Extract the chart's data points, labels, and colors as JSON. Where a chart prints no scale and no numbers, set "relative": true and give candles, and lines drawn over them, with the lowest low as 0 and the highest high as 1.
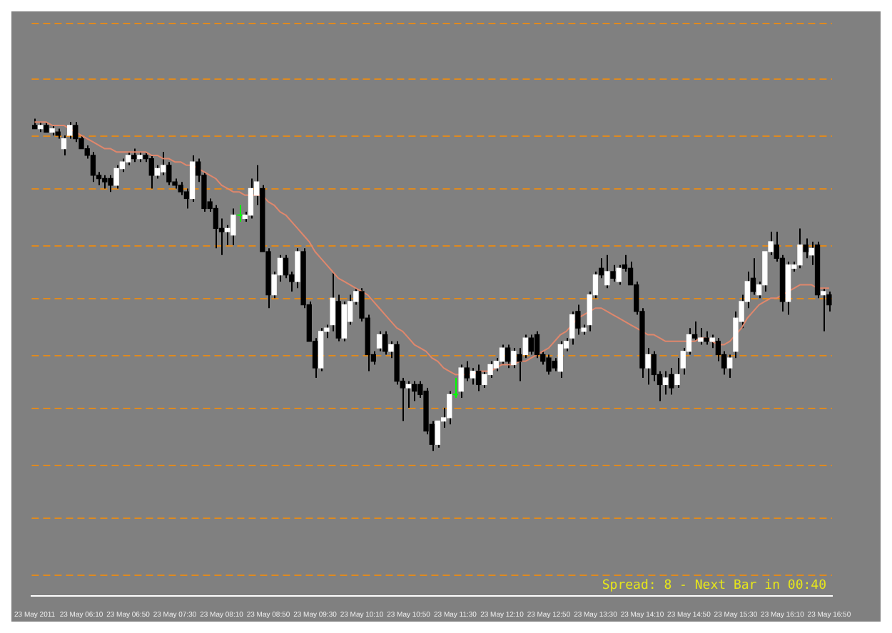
{
  "chart_data": {
    "type": "candlestick",
    "relative": true,
    "legend": false,
    "categories": [
      "23 May 2011",
      null,
      null,
      null,
      null,
      null,
      null,
      null,
      "23 May 06:10",
      null,
      null,
      null,
      null,
      null,
      null,
      null,
      "23 May 06:50",
      null,
      null,
      null,
      null,
      null,
      null,
      null,
      "23 May 07:30",
      null,
      null,
      null,
      null,
      null,
      null,
      null,
      "23 May 08:10",
      null,
      null,
      null,
      null,
      null,
      null,
      null,
      "23 May 08:50",
      null,
      null,
      null,
      null,
      null,
      null,
      null,
      "23 May 09:30",
      null,
      null,
      null,
      null,
      null,
      null,
      null,
      "23 May 10:10",
      null,
      null,
      null,
      null,
      null,
      null,
      null,
      "23 May 10:50",
      null,
      null,
      null,
      null,
      null,
      null,
      null,
      "23 May 11:30",
      null,
      null,
      null,
      null,
      null,
      null,
      null,
      "23 May 12:10",
      null,
      null,
      null,
      null,
      null,
      null,
      null,
      "23 May 12:50",
      null,
      null,
      null,
      null,
      null,
      null,
      null,
      "23 May 13:30",
      null,
      null,
      null,
      null,
      null,
      null,
      null,
      "23 May 14:10",
      null,
      null,
      null,
      null,
      null,
      null,
      null,
      "23 May 14:50",
      null,
      null,
      null,
      null,
      null,
      null,
      null,
      "23 May 15:30",
      null,
      null,
      null,
      null,
      null,
      null,
      null,
      "23 May 16:10",
      null,
      null,
      null,
      null,
      null,
      null,
      null,
      "23 May 16:50"
    ],
    "ohlc": [
      [
        0.98,
        1.0,
        0.97,
        0.97
      ],
      [
        0.97,
        0.99,
        0.96,
        0.98
      ],
      [
        0.98,
        0.99,
        0.96,
        0.96
      ],
      [
        0.96,
        0.98,
        0.95,
        0.97
      ],
      [
        0.96,
        0.97,
        0.94,
        0.95
      ],
      [
        0.91,
        0.95,
        0.89,
        0.94
      ],
      [
        0.95,
        0.99,
        0.94,
        0.98
      ],
      [
        0.98,
        0.99,
        0.93,
        0.94
      ],
      [
        0.94,
        0.95,
        0.91,
        0.91
      ],
      [
        0.91,
        0.92,
        0.88,
        0.89
      ],
      [
        0.89,
        0.9,
        0.81,
        0.83
      ],
      [
        0.83,
        0.84,
        0.8,
        0.82
      ],
      [
        0.82,
        0.83,
        0.79,
        0.81
      ],
      [
        0.82,
        0.83,
        0.78,
        0.8
      ],
      [
        0.8,
        0.86,
        0.79,
        0.85
      ],
      [
        0.85,
        0.88,
        0.84,
        0.87
      ],
      [
        0.87,
        0.9,
        0.86,
        0.89
      ],
      [
        0.89,
        0.91,
        0.87,
        0.88
      ],
      [
        0.88,
        0.9,
        0.87,
        0.89
      ],
      [
        0.89,
        0.9,
        0.87,
        0.88
      ],
      [
        0.88,
        0.89,
        0.79,
        0.83
      ],
      [
        0.83,
        0.86,
        0.82,
        0.85
      ],
      [
        0.84,
        0.9,
        0.83,
        0.86
      ],
      [
        0.86,
        0.87,
        0.8,
        0.81
      ],
      [
        0.81,
        0.82,
        0.79,
        0.8
      ],
      [
        0.8,
        0.81,
        0.77,
        0.78
      ],
      [
        0.78,
        0.79,
        0.73,
        0.76
      ],
      [
        0.76,
        0.89,
        0.75,
        0.87
      ],
      [
        0.87,
        0.88,
        0.81,
        0.83
      ],
      [
        0.83,
        0.84,
        0.72,
        0.73
      ],
      [
        0.75,
        0.76,
        0.72,
        0.73
      ],
      [
        0.73,
        0.74,
        0.61,
        0.67
      ],
      [
        0.67,
        0.7,
        0.59,
        0.66
      ],
      [
        0.66,
        0.68,
        0.62,
        0.67
      ],
      [
        0.65,
        0.73,
        0.62,
        0.71
      ],
      [
        0.71,
        0.74,
        0.69,
        0.71
      ],
      [
        0.7,
        0.72,
        0.69,
        0.71
      ],
      [
        0.71,
        0.82,
        0.7,
        0.79
      ],
      [
        0.77,
        0.86,
        0.74,
        0.81
      ],
      [
        0.79,
        0.8,
        0.6,
        0.6
      ],
      [
        0.6,
        0.61,
        0.43,
        0.47
      ],
      [
        0.47,
        0.54,
        0.46,
        0.53
      ],
      [
        0.53,
        0.59,
        0.51,
        0.58
      ],
      [
        0.58,
        0.59,
        0.52,
        0.53
      ],
      [
        0.53,
        0.54,
        0.48,
        0.51
      ],
      [
        0.51,
        0.61,
        0.49,
        0.6
      ],
      [
        0.6,
        0.61,
        0.43,
        0.44
      ],
      [
        0.44,
        0.45,
        0.33,
        0.33
      ],
      [
        0.33,
        0.34,
        0.22,
        0.25
      ],
      [
        0.25,
        0.37,
        0.24,
        0.36
      ],
      [
        0.36,
        0.38,
        0.34,
        0.37
      ],
      [
        0.38,
        0.54,
        0.36,
        0.46
      ],
      [
        0.45,
        0.47,
        0.33,
        0.34
      ],
      [
        0.34,
        0.45,
        0.33,
        0.44
      ],
      [
        0.39,
        0.47,
        0.38,
        0.45
      ],
      [
        0.45,
        0.49,
        0.44,
        0.48
      ],
      [
        0.48,
        0.49,
        0.39,
        0.4
      ],
      [
        0.4,
        0.41,
        0.24,
        0.29
      ],
      [
        0.29,
        0.3,
        0.26,
        0.27
      ],
      [
        0.31,
        0.36,
        0.3,
        0.35
      ],
      [
        0.35,
        0.36,
        0.29,
        0.3
      ],
      [
        0.3,
        0.33,
        0.28,
        0.32
      ],
      [
        0.32,
        0.33,
        0.2,
        0.21
      ],
      [
        0.21,
        0.22,
        0.09,
        0.19
      ],
      [
        0.19,
        0.21,
        0.13,
        0.2
      ],
      [
        0.2,
        0.21,
        0.15,
        0.18
      ],
      [
        0.2,
        0.21,
        0.16,
        0.17
      ],
      [
        0.18,
        0.19,
        0.05,
        0.06
      ],
      [
        0.08,
        0.09,
        0.0,
        0.02
      ],
      [
        0.02,
        0.09,
        0.01,
        0.09
      ],
      [
        0.09,
        0.13,
        0.07,
        0.1
      ],
      [
        0.1,
        0.18,
        0.08,
        0.17
      ],
      [
        0.17,
        0.22,
        0.16,
        0.17
      ],
      [
        0.18,
        0.26,
        0.16,
        0.25
      ],
      [
        0.25,
        0.27,
        0.21,
        0.22
      ],
      [
        0.22,
        0.25,
        0.2,
        0.24
      ],
      [
        0.24,
        0.26,
        0.18,
        0.2
      ],
      [
        0.2,
        0.24,
        0.19,
        0.23
      ],
      [
        0.23,
        0.27,
        0.22,
        0.26
      ],
      [
        0.25,
        0.28,
        0.24,
        0.27
      ],
      [
        0.27,
        0.32,
        0.26,
        0.31
      ],
      [
        0.31,
        0.32,
        0.25,
        0.27
      ],
      [
        0.26,
        0.31,
        0.25,
        0.3
      ],
      [
        0.29,
        0.31,
        0.21,
        0.27
      ],
      [
        0.29,
        0.35,
        0.28,
        0.34
      ],
      [
        0.34,
        0.35,
        0.29,
        0.3
      ],
      [
        0.35,
        0.36,
        0.28,
        0.29
      ],
      [
        0.29,
        0.3,
        0.26,
        0.27
      ],
      [
        0.28,
        0.29,
        0.23,
        0.24
      ],
      [
        0.27,
        0.28,
        0.24,
        0.25
      ],
      [
        0.24,
        0.33,
        0.22,
        0.32
      ],
      [
        0.31,
        0.34,
        0.3,
        0.33
      ],
      [
        0.34,
        0.42,
        0.32,
        0.41
      ],
      [
        0.42,
        0.44,
        0.35,
        0.37
      ],
      [
        0.36,
        0.38,
        0.35,
        0.37
      ],
      [
        0.38,
        0.48,
        0.36,
        0.47
      ],
      [
        0.47,
        0.54,
        0.46,
        0.53
      ],
      [
        0.55,
        0.58,
        0.52,
        0.53
      ],
      [
        0.5,
        0.59,
        0.49,
        0.54
      ],
      [
        0.54,
        0.56,
        0.51,
        0.52
      ],
      [
        0.51,
        0.56,
        0.5,
        0.55
      ],
      [
        0.56,
        0.59,
        0.54,
        0.55
      ],
      [
        0.55,
        0.57,
        0.5,
        0.5
      ],
      [
        0.5,
        0.51,
        0.41,
        0.42
      ],
      [
        0.42,
        0.43,
        0.22,
        0.25
      ],
      [
        0.25,
        0.31,
        0.2,
        0.29
      ],
      [
        0.29,
        0.3,
        0.21,
        0.23
      ],
      [
        0.23,
        0.24,
        0.15,
        0.2
      ],
      [
        0.2,
        0.24,
        0.17,
        0.22
      ],
      [
        0.23,
        0.25,
        0.17,
        0.19
      ],
      [
        0.2,
        0.28,
        0.19,
        0.23
      ],
      [
        0.25,
        0.31,
        0.23,
        0.3
      ],
      [
        0.3,
        0.37,
        0.29,
        0.35
      ],
      [
        0.35,
        0.39,
        0.33,
        0.34
      ],
      [
        0.33,
        0.37,
        0.32,
        0.34
      ],
      [
        0.34,
        0.36,
        0.32,
        0.33
      ],
      [
        0.33,
        0.35,
        0.31,
        0.34
      ],
      [
        0.33,
        0.34,
        0.27,
        0.29
      ],
      [
        0.29,
        0.3,
        0.23,
        0.25
      ],
      [
        0.25,
        0.29,
        0.22,
        0.28
      ],
      [
        0.3,
        0.42,
        0.28,
        0.4
      ],
      [
        0.39,
        0.47,
        0.37,
        0.45
      ],
      [
        0.45,
        0.54,
        0.43,
        0.51
      ],
      [
        0.52,
        0.58,
        0.47,
        0.48
      ],
      [
        0.47,
        0.51,
        0.46,
        0.5
      ],
      [
        0.5,
        0.6,
        0.48,
        0.6
      ],
      [
        0.6,
        0.66,
        0.59,
        0.63
      ],
      [
        0.62,
        0.66,
        0.57,
        0.58
      ],
      [
        0.58,
        0.59,
        0.42,
        0.45
      ],
      [
        0.45,
        0.57,
        0.41,
        0.56
      ],
      [
        0.55,
        0.57,
        0.54,
        0.56
      ],
      [
        0.56,
        0.67,
        0.55,
        0.62
      ],
      [
        0.62,
        0.64,
        0.58,
        0.6
      ],
      [
        0.59,
        0.63,
        0.56,
        0.61
      ],
      [
        0.62,
        0.63,
        0.46,
        0.47
      ],
      [
        0.47,
        0.49,
        0.36,
        0.48
      ],
      [
        0.47,
        0.48,
        0.42,
        0.44
      ]
    ],
    "colors": [
      "#000000",
      "#ffffff",
      "#000000",
      "#ffffff",
      "#000000",
      "#ffffff",
      "#ffffff",
      "#000000",
      "#000000",
      "#000000",
      "#000000",
      "#000000",
      "#000000",
      "#000000",
      "#ffffff",
      "#ffffff",
      "#ffffff",
      "#000000",
      "#ffffff",
      "#000000",
      "#000000",
      "#ffffff",
      "#ffffff",
      "#000000",
      "#000000",
      "#000000",
      "#000000",
      "#ffffff",
      "#000000",
      "#000000",
      "#000000",
      "#000000",
      "#000000",
      "#ffffff",
      "#ffffff",
      "#00ff00",
      "#ffffff",
      "#ffffff",
      "#ffffff",
      "#000000",
      "#000000",
      "#ffffff",
      "#ffffff",
      "#000000",
      "#000000",
      "#ffffff",
      "#000000",
      "#000000",
      "#000000",
      "#ffffff",
      "#ffffff",
      "#ffffff",
      "#000000",
      "#ffffff",
      "#ffffff",
      "#ffffff",
      "#000000",
      "#000000",
      "#000000",
      "#ffffff",
      "#000000",
      "#ffffff",
      "#000000",
      "#000000",
      "#ffffff",
      "#000000",
      "#000000",
      "#000000",
      "#000000",
      "#ffffff",
      "#ffffff",
      "#ffffff",
      "#00ff00",
      "#ffffff",
      "#000000",
      "#ffffff",
      "#000000",
      "#ffffff",
      "#ffffff",
      "#ffffff",
      "#ffffff",
      "#000000",
      "#ffffff",
      "#000000",
      "#ffffff",
      "#000000",
      "#000000",
      "#000000",
      "#000000",
      "#000000",
      "#ffffff",
      "#ffffff",
      "#ffffff",
      "#000000",
      "#ffffff",
      "#ffffff",
      "#ffffff",
      "#000000",
      "#ffffff",
      "#000000",
      "#ffffff",
      "#000000",
      "#000000",
      "#000000",
      "#000000",
      "#ffffff",
      "#000000",
      "#000000",
      "#ffffff",
      "#000000",
      "#ffffff",
      "#ffffff",
      "#ffffff",
      "#000000",
      "#ffffff",
      "#000000",
      "#ffffff",
      "#000000",
      "#000000",
      "#ffffff",
      "#ffffff",
      "#ffffff",
      "#ffffff",
      "#000000",
      "#ffffff",
      "#ffffff",
      "#ffffff",
      "#000000",
      "#000000",
      "#ffffff",
      "#ffffff",
      "#ffffff",
      "#000000",
      "#ffffff",
      "#000000",
      "#ffffff",
      "#000000"
    ],
    "series": [
      {
        "type": "line",
        "color": "#e0876c",
        "values": [
          0.99,
          0.99,
          0.99,
          0.98,
          0.98,
          0.98,
          0.97,
          0.96,
          0.95,
          0.94,
          0.93,
          0.92,
          0.91,
          0.91,
          0.9,
          0.9,
          0.9,
          0.9,
          0.9,
          0.9,
          0.89,
          0.89,
          0.88,
          0.88,
          0.87,
          0.87,
          0.86,
          0.86,
          0.85,
          0.84,
          0.83,
          0.82,
          0.8,
          0.79,
          0.78,
          0.78,
          0.77,
          0.77,
          0.77,
          0.77,
          0.75,
          0.74,
          0.72,
          0.71,
          0.69,
          0.67,
          0.65,
          0.63,
          0.6,
          0.58,
          0.56,
          0.54,
          0.52,
          0.51,
          0.5,
          0.49,
          0.48,
          0.47,
          0.45,
          0.43,
          0.41,
          0.39,
          0.37,
          0.36,
          0.34,
          0.32,
          0.31,
          0.3,
          0.28,
          0.27,
          0.25,
          0.24,
          0.23,
          0.23,
          0.23,
          0.23,
          0.24,
          0.24,
          0.24,
          0.25,
          0.26,
          0.26,
          0.26,
          0.27,
          0.27,
          0.28,
          0.29,
          0.3,
          0.31,
          0.33,
          0.35,
          0.36,
          0.38,
          0.4,
          0.41,
          0.42,
          0.43,
          0.43,
          0.42,
          0.41,
          0.4,
          0.39,
          0.38,
          0.37,
          0.36,
          0.35,
          0.35,
          0.34,
          0.33,
          0.33,
          0.33,
          0.33,
          0.33,
          0.33,
          0.34,
          0.34,
          0.33,
          0.32,
          0.32,
          0.33,
          0.35,
          0.37,
          0.4,
          0.42,
          0.44,
          0.45,
          0.46,
          0.46,
          0.47,
          0.48,
          0.49,
          0.5,
          0.5,
          0.5,
          0.49,
          0.49,
          0.49
        ]
      }
    ],
    "ref_lines": [
      {
        "axis": "y",
        "value": 1.29,
        "color": "#e08a1e",
        "line_style": "dashed"
      },
      {
        "axis": "y",
        "value": 1.12,
        "color": "#e08a1e",
        "line_style": "dashed"
      },
      {
        "axis": "y",
        "value": 0.95,
        "color": "#e08a1e",
        "line_style": "dashed"
      },
      {
        "axis": "y",
        "value": 0.79,
        "color": "#e08a1e",
        "line_style": "dashed"
      },
      {
        "axis": "y",
        "value": 0.62,
        "color": "#e08a1e",
        "line_style": "dashed"
      },
      {
        "axis": "y",
        "value": 0.46,
        "color": "#e08a1e",
        "line_style": "dashed"
      },
      {
        "axis": "y",
        "value": 0.29,
        "color": "#e08a1e",
        "line_style": "dashed"
      },
      {
        "axis": "y",
        "value": 0.13,
        "color": "#e08a1e",
        "line_style": "dashed"
      },
      {
        "axis": "y",
        "value": -0.04,
        "color": "#e08a1e",
        "line_style": "dashed"
      },
      {
        "axis": "y",
        "value": -0.2,
        "color": "#e08a1e",
        "line_style": "dashed"
      },
      {
        "axis": "y",
        "value": -0.37,
        "color": "#e08a1e",
        "line_style": "dashed"
      }
    ],
    "annotations": [
      "Spread: 8 - Next Bar in 00:40"
    ]
  }
}
